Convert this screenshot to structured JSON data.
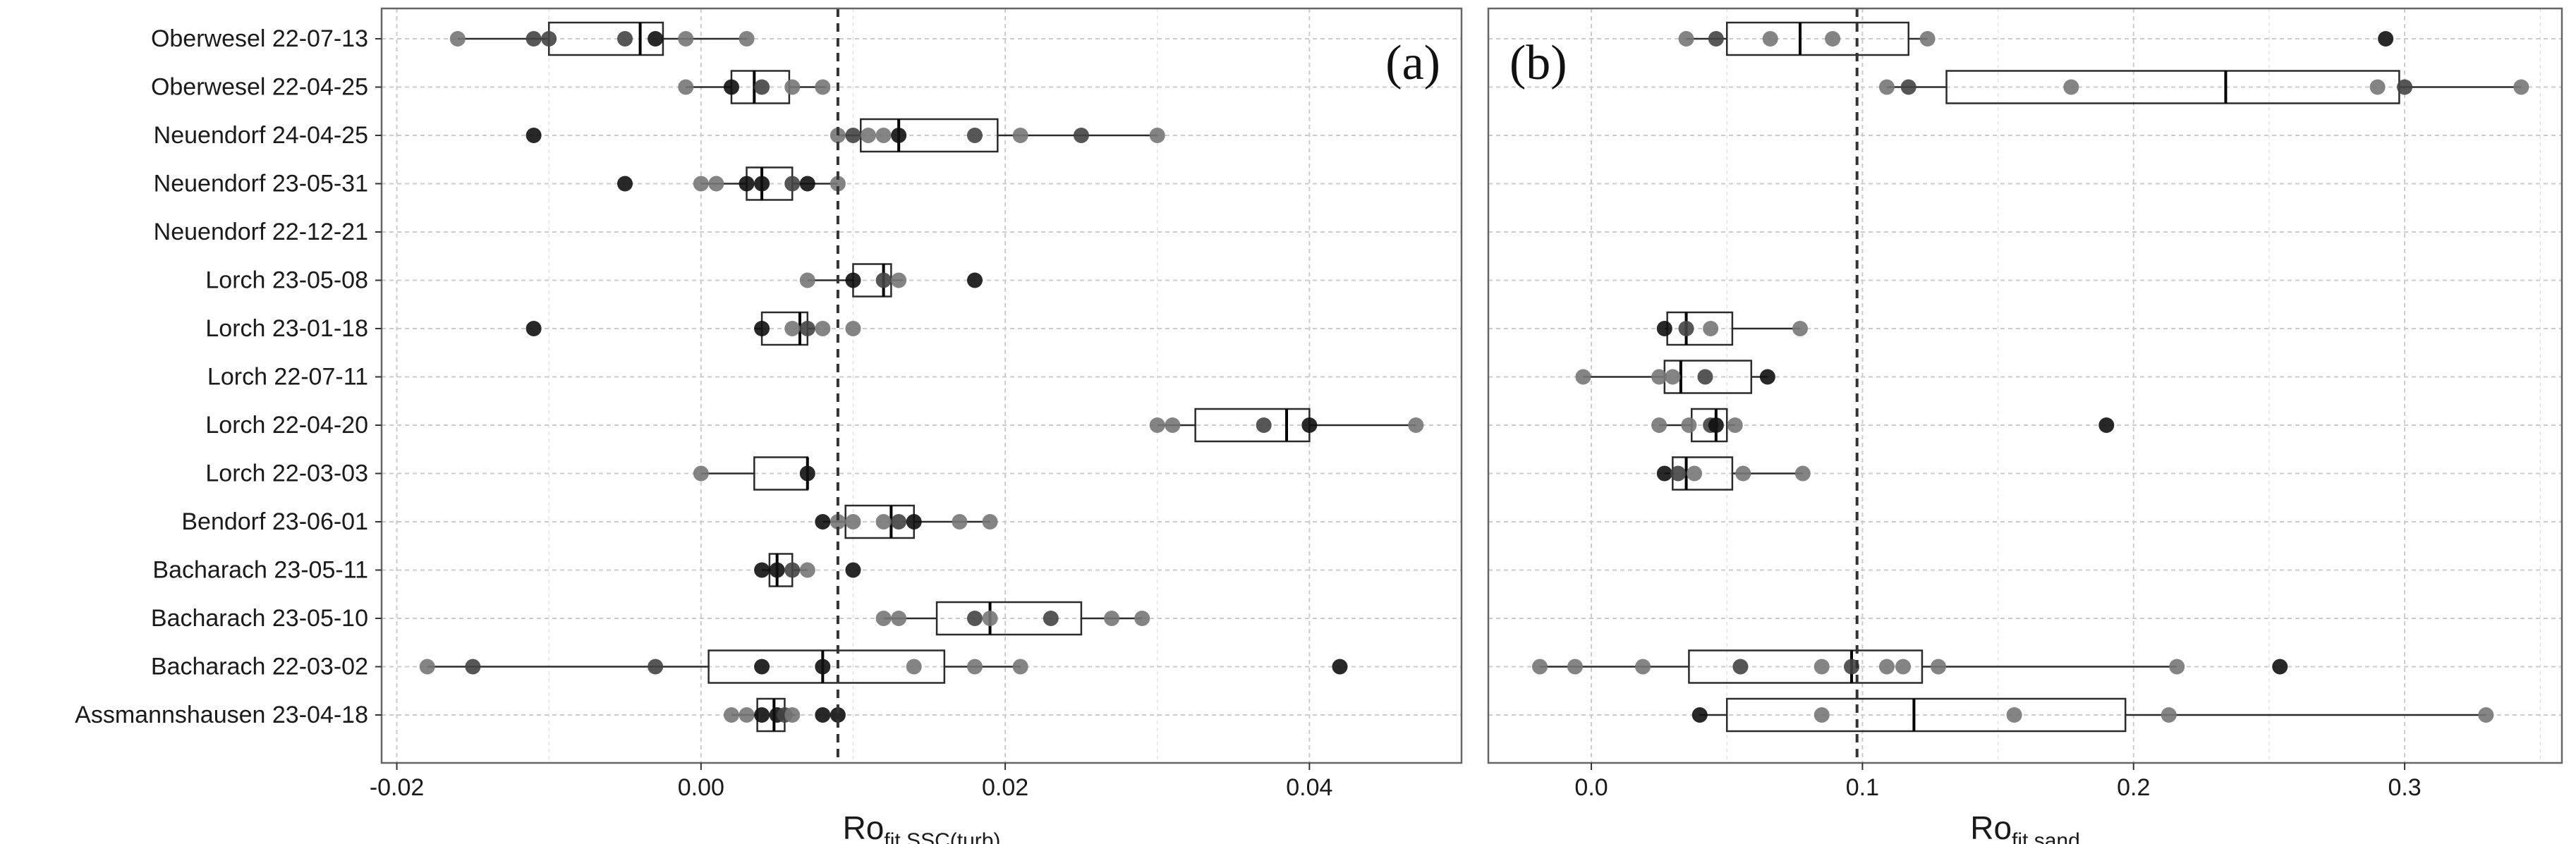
{
  "chart_data": {
    "type": "boxplot",
    "style": {
      "panel_bg": "#ffffff",
      "panel_border": "#666666",
      "grid_major": "#cccccc",
      "grid_minor": "#e3e3e3",
      "box_line": "#2b2b2b",
      "point_dark": "#111111",
      "point_mid": "#444444",
      "point_light": "#777777",
      "ref_line": "#333333"
    },
    "categories": [
      "Oberwesel 22-07-13",
      "Oberwesel 22-04-25",
      "Neuendorf 24-04-25",
      "Neuendorf 23-05-31",
      "Neuendorf 22-12-21",
      "Lorch 23-05-08",
      "Lorch 23-01-18",
      "Lorch 22-07-11",
      "Lorch 22-04-20",
      "Lorch 22-03-03",
      "Bendorf 23-06-01",
      "Bacharach 23-05-11",
      "Bacharach 23-05-10",
      "Bacharach 22-03-02",
      "Assmannshausen 23-04-18"
    ],
    "panels": [
      {
        "label": "(a)",
        "xlabel_main": "Ro",
        "xlabel_sub": "fit,SSC(turb)",
        "xlim": [
          -0.021,
          0.05
        ],
        "ticks": [
          -0.02,
          0.0,
          0.02,
          0.04
        ],
        "tick_labels": [
          "-0.02",
          "0.00",
          "0.02",
          "0.04"
        ],
        "ref_line": 0.009,
        "boxes": [
          {
            "whisker_low": -0.016,
            "q1": -0.01,
            "median": -0.004,
            "q3": -0.0025,
            "whisker_high": 0.003,
            "outliers": [],
            "points": [
              [
                -0.016,
                0
              ],
              [
                -0.011,
                1
              ],
              [
                -0.01,
                1
              ],
              [
                -0.005,
                1
              ],
              [
                -0.003,
                2
              ],
              [
                -0.001,
                0
              ],
              [
                0.003,
                0
              ]
            ]
          },
          {
            "whisker_low": -0.001,
            "q1": 0.002,
            "median": 0.0035,
            "q3": 0.0058,
            "whisker_high": 0.0082,
            "outliers": [],
            "points": [
              [
                -0.001,
                0
              ],
              [
                0.002,
                2
              ],
              [
                0.004,
                1
              ],
              [
                0.006,
                0
              ],
              [
                0.008,
                0
              ]
            ]
          },
          {
            "whisker_low": 0.009,
            "q1": 0.0105,
            "median": 0.013,
            "q3": 0.0195,
            "whisker_high": 0.03,
            "outliers": [
              -0.011
            ],
            "points": [
              [
                -0.011,
                2
              ],
              [
                0.009,
                0
              ],
              [
                0.01,
                1
              ],
              [
                0.011,
                0
              ],
              [
                0.012,
                0
              ],
              [
                0.013,
                2
              ],
              [
                0.018,
                1
              ],
              [
                0.021,
                0
              ],
              [
                0.025,
                1
              ],
              [
                0.03,
                0
              ]
            ]
          },
          {
            "whisker_low": 0.0,
            "q1": 0.003,
            "median": 0.004,
            "q3": 0.006,
            "whisker_high": 0.009,
            "outliers": [
              -0.005
            ],
            "points": [
              [
                -0.005,
                2
              ],
              [
                0.0,
                0
              ],
              [
                0.001,
                0
              ],
              [
                0.003,
                2
              ],
              [
                0.004,
                2
              ],
              [
                0.006,
                1
              ],
              [
                0.007,
                2
              ],
              [
                0.009,
                0
              ]
            ]
          },
          null,
          {
            "whisker_low": 0.007,
            "q1": 0.01,
            "median": 0.012,
            "q3": 0.0125,
            "whisker_high": 0.0133,
            "outliers": [
              0.018
            ],
            "points": [
              [
                0.007,
                0
              ],
              [
                0.01,
                2
              ],
              [
                0.012,
                1
              ],
              [
                0.013,
                0
              ],
              [
                0.018,
                2
              ]
            ]
          },
          {
            "whisker_low": 0.0035,
            "q1": 0.004,
            "median": 0.0065,
            "q3": 0.007,
            "whisker_high": 0.0075,
            "outliers": [
              -0.011,
              0.01
            ],
            "points": [
              [
                -0.011,
                2
              ],
              [
                0.004,
                2
              ],
              [
                0.006,
                0
              ],
              [
                0.007,
                1
              ],
              [
                0.008,
                0
              ],
              [
                0.01,
                0
              ]
            ]
          },
          null,
          {
            "whisker_low": 0.03,
            "q1": 0.0325,
            "median": 0.0385,
            "q3": 0.04,
            "whisker_high": 0.047,
            "outliers": [],
            "points": [
              [
                0.03,
                0
              ],
              [
                0.031,
                0
              ],
              [
                0.037,
                1
              ],
              [
                0.04,
                2
              ],
              [
                0.047,
                0
              ]
            ]
          },
          {
            "whisker_low": 0.0,
            "q1": 0.0035,
            "median": 0.007,
            "q3": 0.007,
            "whisker_high": 0.007,
            "outliers": [],
            "points": [
              [
                0.0,
                0
              ],
              [
                0.007,
                2
              ]
            ]
          },
          {
            "whisker_low": 0.008,
            "q1": 0.0095,
            "median": 0.0125,
            "q3": 0.014,
            "whisker_high": 0.019,
            "outliers": [],
            "points": [
              [
                0.008,
                2
              ],
              [
                0.009,
                0
              ],
              [
                0.01,
                0
              ],
              [
                0.012,
                0
              ],
              [
                0.013,
                1
              ],
              [
                0.014,
                2
              ],
              [
                0.017,
                0
              ],
              [
                0.019,
                0
              ]
            ]
          },
          {
            "whisker_low": 0.004,
            "q1": 0.0045,
            "median": 0.005,
            "q3": 0.006,
            "whisker_high": 0.007,
            "outliers": [
              0.01
            ],
            "points": [
              [
                0.004,
                2
              ],
              [
                0.005,
                2
              ],
              [
                0.006,
                1
              ],
              [
                0.007,
                0
              ],
              [
                0.01,
                2
              ]
            ]
          },
          {
            "whisker_low": 0.012,
            "q1": 0.0155,
            "median": 0.019,
            "q3": 0.025,
            "whisker_high": 0.029,
            "outliers": [],
            "points": [
              [
                0.012,
                0
              ],
              [
                0.013,
                0
              ],
              [
                0.018,
                1
              ],
              [
                0.019,
                0
              ],
              [
                0.023,
                1
              ],
              [
                0.027,
                0
              ],
              [
                0.029,
                0
              ]
            ]
          },
          {
            "whisker_low": -0.018,
            "q1": 0.0005,
            "median": 0.008,
            "q3": 0.016,
            "whisker_high": 0.021,
            "outliers": [
              0.042
            ],
            "points": [
              [
                -0.018,
                0
              ],
              [
                -0.015,
                1
              ],
              [
                -0.003,
                1
              ],
              [
                0.004,
                2
              ],
              [
                0.008,
                2
              ],
              [
                0.014,
                0
              ],
              [
                0.018,
                0
              ],
              [
                0.021,
                0
              ],
              [
                0.042,
                2
              ]
            ]
          },
          {
            "whisker_low": 0.002,
            "q1": 0.0037,
            "median": 0.0048,
            "q3": 0.0055,
            "whisker_high": 0.0062,
            "outliers": [
              0.008,
              0.009
            ],
            "points": [
              [
                0.002,
                0
              ],
              [
                0.003,
                0
              ],
              [
                0.004,
                2
              ],
              [
                0.005,
                2
              ],
              [
                0.0055,
                1
              ],
              [
                0.006,
                0
              ],
              [
                0.008,
                2
              ],
              [
                0.009,
                2
              ]
            ]
          }
        ]
      },
      {
        "label": "(b)",
        "xlabel_main": "Ro",
        "xlabel_sub": "fit,sand",
        "xlim": [
          -0.038,
          0.358
        ],
        "ticks": [
          0.0,
          0.1,
          0.2,
          0.3
        ],
        "tick_labels": [
          "0.0",
          "0.1",
          "0.2",
          "0.3"
        ],
        "ref_line": 0.098,
        "boxes": [
          {
            "whisker_low": 0.035,
            "q1": 0.05,
            "median": 0.077,
            "q3": 0.117,
            "whisker_high": 0.124,
            "outliers": [
              0.293
            ],
            "points": [
              [
                0.035,
                0
              ],
              [
                0.046,
                1
              ],
              [
                0.066,
                0
              ],
              [
                0.089,
                0
              ],
              [
                0.124,
                0
              ],
              [
                0.293,
                2
              ]
            ]
          },
          {
            "whisker_low": 0.109,
            "q1": 0.131,
            "median": 0.234,
            "q3": 0.298,
            "whisker_high": 0.343,
            "outliers": [],
            "points": [
              [
                0.109,
                0
              ],
              [
                0.117,
                1
              ],
              [
                0.177,
                0
              ],
              [
                0.29,
                0
              ],
              [
                0.3,
                1
              ],
              [
                0.343,
                0
              ]
            ]
          },
          null,
          null,
          null,
          null,
          {
            "whisker_low": 0.027,
            "q1": 0.028,
            "median": 0.035,
            "q3": 0.052,
            "whisker_high": 0.077,
            "outliers": [],
            "points": [
              [
                0.027,
                2
              ],
              [
                0.035,
                1
              ],
              [
                0.044,
                0
              ],
              [
                0.077,
                0
              ]
            ]
          },
          {
            "whisker_low": -0.003,
            "q1": 0.027,
            "median": 0.033,
            "q3": 0.059,
            "whisker_high": 0.065,
            "outliers": [],
            "points": [
              [
                -0.003,
                0
              ],
              [
                0.025,
                0
              ],
              [
                0.03,
                0
              ],
              [
                0.042,
                1
              ],
              [
                0.065,
                2
              ]
            ]
          },
          {
            "whisker_low": 0.025,
            "q1": 0.037,
            "median": 0.046,
            "q3": 0.05,
            "whisker_high": 0.053,
            "outliers": [
              0.19
            ],
            "points": [
              [
                0.025,
                0
              ],
              [
                0.036,
                0
              ],
              [
                0.044,
                1
              ],
              [
                0.046,
                2
              ],
              [
                0.053,
                0
              ],
              [
                0.19,
                2
              ]
            ]
          },
          {
            "whisker_low": 0.027,
            "q1": 0.03,
            "median": 0.035,
            "q3": 0.052,
            "whisker_high": 0.078,
            "outliers": [],
            "points": [
              [
                0.027,
                2
              ],
              [
                0.032,
                1
              ],
              [
                0.038,
                0
              ],
              [
                0.056,
                0
              ],
              [
                0.078,
                0
              ]
            ]
          },
          null,
          null,
          null,
          {
            "whisker_low": -0.019,
            "q1": 0.036,
            "median": 0.096,
            "q3": 0.122,
            "whisker_high": 0.216,
            "outliers": [
              0.254
            ],
            "points": [
              [
                -0.019,
                0
              ],
              [
                -0.006,
                0
              ],
              [
                0.019,
                0
              ],
              [
                0.055,
                1
              ],
              [
                0.085,
                0
              ],
              [
                0.096,
                1
              ],
              [
                0.109,
                0
              ],
              [
                0.115,
                0
              ],
              [
                0.128,
                0
              ],
              [
                0.216,
                0
              ],
              [
                0.254,
                2
              ]
            ]
          },
          {
            "whisker_low": 0.04,
            "q1": 0.05,
            "median": 0.119,
            "q3": 0.197,
            "whisker_high": 0.33,
            "outliers": [],
            "points": [
              [
                0.04,
                2
              ],
              [
                0.085,
                0
              ],
              [
                0.156,
                0
              ],
              [
                0.213,
                0
              ],
              [
                0.33,
                0
              ]
            ]
          }
        ]
      }
    ]
  }
}
